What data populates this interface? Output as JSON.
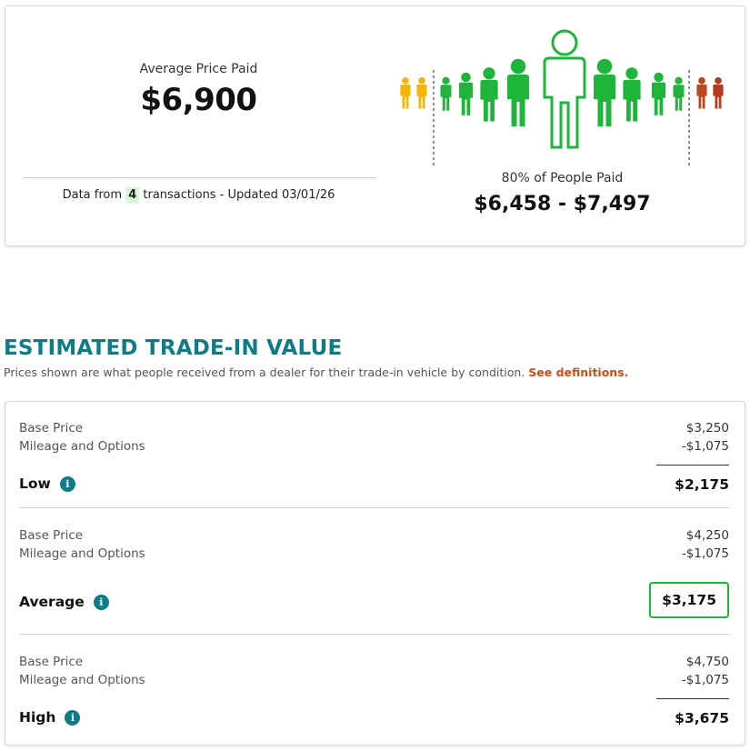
{
  "summary": {
    "avg_label": "Average Price Paid",
    "avg_value": "$6,900",
    "data_prefix": "Data from",
    "transaction_count": "4",
    "data_suffix": "transactions - Updated 03/01/26",
    "range_label": "80% of People Paid",
    "range_value": "$6,458 - $7,497",
    "colors": {
      "low": "#f2b705",
      "mid": "#1fb53a",
      "high": "#b83a1e"
    }
  },
  "trade_in": {
    "title": "ESTIMATED TRADE-IN VALUE",
    "subtitle": "Prices shown are what people received from a dealer for their trade-in vehicle by condition.",
    "definitions_link": "See definitions.",
    "tiers": [
      {
        "name": "Low",
        "base_label": "Base Price",
        "base_value": "$3,250",
        "adj_label": "Mileage and Options",
        "adj_value": "-$1,075",
        "total": "$2,175"
      },
      {
        "name": "Average",
        "base_label": "Base Price",
        "base_value": "$4,250",
        "adj_label": "Mileage and Options",
        "adj_value": "-$1,075",
        "total": "$3,175"
      },
      {
        "name": "High",
        "base_label": "Base Price",
        "base_value": "$4,750",
        "adj_label": "Mileage and Options",
        "adj_value": "-$1,075",
        "total": "$3,675"
      }
    ]
  }
}
